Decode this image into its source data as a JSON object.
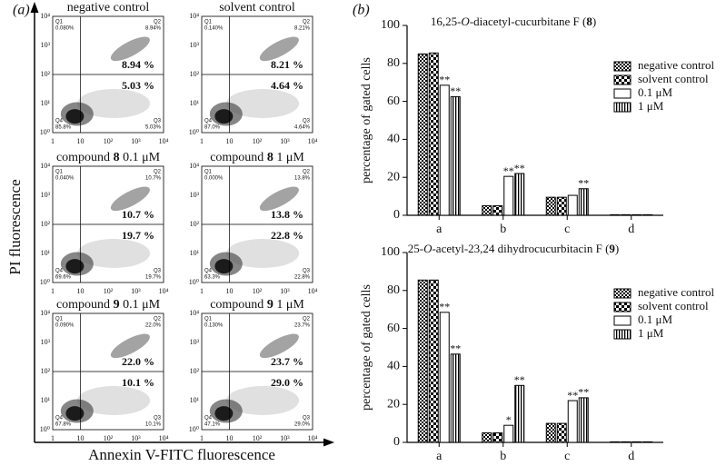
{
  "panel_labels": [
    "(a)",
    "(b)"
  ],
  "flow": {
    "y_label": "PI fluorescence",
    "x_label": "Annexin V-FITC fluorescence",
    "x_tick_labels": [
      "1",
      "10",
      "10²",
      "10³",
      "10⁴"
    ],
    "y_tick_labels": [
      "10⁰",
      "10¹",
      "10²",
      "10³",
      "10⁴"
    ],
    "quadrant_names": [
      "Q1",
      "Q2",
      "Q3",
      "Q4"
    ],
    "plots": [
      {
        "title": [
          "negative control"
        ],
        "quadrant_values": [
          "0.080%",
          "8.94%",
          "5.03%",
          "85.8%"
        ],
        "highlights": [
          "8.94 %",
          "5.03 %"
        ]
      },
      {
        "title": [
          "solvent control"
        ],
        "quadrant_values": [
          "0.140%",
          "8.21%",
          "4.64%",
          "87.0%"
        ],
        "highlights": [
          "8.21 %",
          "4.64 %"
        ]
      },
      {
        "title": [
          "compound ",
          "8",
          " 0.1 μM"
        ],
        "quadrant_values": [
          "0.040%",
          "10.7%",
          "19.7%",
          "69.6%"
        ],
        "highlights": [
          "10.7 %",
          "19.7 %"
        ]
      },
      {
        "title": [
          "compound ",
          "8",
          " 1 μM"
        ],
        "quadrant_values": [
          "0.000%",
          "13.8%",
          "22.8%",
          "63.3%"
        ],
        "highlights": [
          "13.8 %",
          "22.8 %"
        ]
      },
      {
        "title": [
          "compound ",
          "9",
          " 0.1 μM"
        ],
        "quadrant_values": [
          "0.090%",
          "22.0%",
          "10.1%",
          "67.8%"
        ],
        "highlights": [
          "22.0 %",
          "10.1 %"
        ]
      },
      {
        "title": [
          "compound ",
          "9",
          " 1 μM"
        ],
        "quadrant_values": [
          "0.130%",
          "23.7%",
          "29.0%",
          "47.1%"
        ],
        "highlights": [
          "23.7 %",
          "29.0 %"
        ]
      }
    ]
  },
  "chart_data": [
    {
      "type": "bar",
      "title": [
        {
          "text": "16,25-"
        },
        {
          "text": "O",
          "style": "italic"
        },
        {
          "text": "-diacetyl-cucurbitane F ("
        },
        {
          "text": "8",
          "style": "bold"
        },
        {
          "text": ")"
        }
      ],
      "y_label": "percentage of gated cells",
      "categories": [
        "a",
        "b",
        "c",
        "d"
      ],
      "ylim": [
        0,
        100
      ],
      "yticks": [
        0,
        20,
        40,
        60,
        80,
        100
      ],
      "series": [
        {
          "name": "negative control",
          "pattern": "checker-small",
          "values": [
            85,
            5,
            9.5,
            0.3
          ],
          "annotations": [
            null,
            null,
            null,
            null
          ]
        },
        {
          "name": "solvent control",
          "pattern": "checker-large",
          "values": [
            85.5,
            5,
            9.5,
            0.3
          ],
          "annotations": [
            null,
            null,
            null,
            null
          ]
        },
        {
          "name": "0.1 μM",
          "pattern": "white",
          "values": [
            68.5,
            20.5,
            10.5,
            0.3
          ],
          "annotations": [
            "**",
            "**",
            null,
            null
          ]
        },
        {
          "name": "1 μM",
          "pattern": "stripes",
          "values": [
            62.5,
            22,
            14,
            0.3
          ],
          "annotations": [
            "**",
            "**",
            "**",
            null
          ]
        }
      ]
    },
    {
      "type": "bar",
      "title": [
        {
          "text": "25-"
        },
        {
          "text": "O",
          "style": "italic"
        },
        {
          "text": "-acetyl-23,24 dihydrocucurbitacin F ("
        },
        {
          "text": "9",
          "style": "bold"
        },
        {
          "text": ")"
        }
      ],
      "y_label": "percentage of gated cells",
      "categories": [
        "a",
        "b",
        "c",
        "d"
      ],
      "ylim": [
        0,
        100
      ],
      "yticks": [
        0,
        20,
        40,
        60,
        80,
        100
      ],
      "series": [
        {
          "name": "negative control",
          "pattern": "checker-small",
          "values": [
            85.5,
            5,
            10,
            0.3
          ],
          "annotations": [
            null,
            null,
            null,
            null
          ]
        },
        {
          "name": "solvent control",
          "pattern": "checker-large",
          "values": [
            85.5,
            5,
            10,
            0.3
          ],
          "annotations": [
            null,
            null,
            null,
            null
          ]
        },
        {
          "name": "0.1 μM",
          "pattern": "white",
          "values": [
            68.5,
            9,
            22,
            0.3
          ],
          "annotations": [
            "**",
            "*",
            "**",
            null
          ]
        },
        {
          "name": "1 μM",
          "pattern": "stripes",
          "values": [
            46.5,
            30,
            23.5,
            0.3
          ],
          "annotations": [
            "**",
            "**",
            "**",
            null
          ]
        }
      ]
    }
  ]
}
